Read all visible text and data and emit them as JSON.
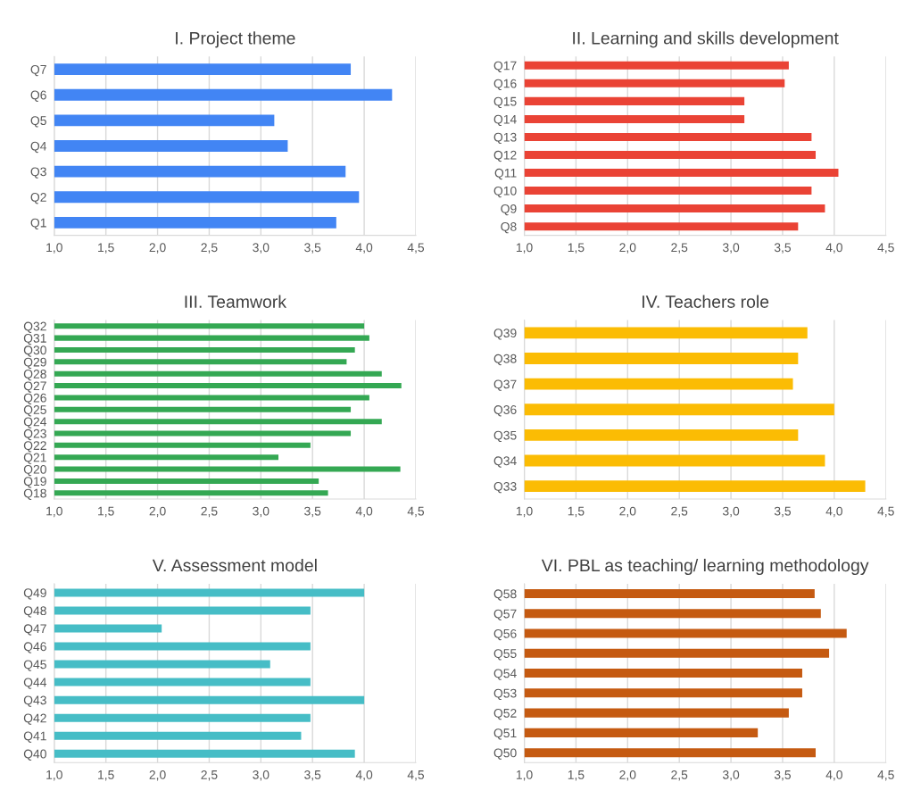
{
  "chart_data": [
    {
      "type": "bar",
      "orientation": "horizontal",
      "title": "I. Project theme",
      "categories": [
        "Q7",
        "Q6",
        "Q5",
        "Q4",
        "Q3",
        "Q2",
        "Q1"
      ],
      "values": [
        3.87,
        4.27,
        3.13,
        3.26,
        3.82,
        3.95,
        3.73
      ],
      "color": "#4285f4",
      "xlim": [
        1,
        4.5
      ],
      "xticks": [
        {
          "value": 1,
          "label": "1,0"
        },
        {
          "value": 1.5,
          "label": "1,5"
        },
        {
          "value": 2,
          "label": "2,0"
        },
        {
          "value": 2.5,
          "label": "2,5"
        },
        {
          "value": 3,
          "label": "3,0"
        },
        {
          "value": 3.5,
          "label": "3,5"
        },
        {
          "value": 4,
          "label": "4,0"
        },
        {
          "value": 4.5,
          "label": "4,5"
        }
      ],
      "grid": "x"
    },
    {
      "type": "bar",
      "orientation": "horizontal",
      "title": "II. Learning and skills development",
      "categories": [
        "Q17",
        "Q16",
        "Q15",
        "Q14",
        "Q13",
        "Q12",
        "Q11",
        "Q10",
        "Q9",
        "Q8"
      ],
      "values": [
        3.56,
        3.52,
        3.13,
        3.13,
        3.78,
        3.82,
        4.04,
        3.78,
        3.91,
        3.65
      ],
      "color": "#ea4335",
      "xlim": [
        1,
        4.5
      ],
      "xticks": [
        {
          "value": 1,
          "label": "1,0"
        },
        {
          "value": 1.5,
          "label": "1,5"
        },
        {
          "value": 2,
          "label": "2,0"
        },
        {
          "value": 2.5,
          "label": "2,5"
        },
        {
          "value": 3,
          "label": "3,0"
        },
        {
          "value": 3.5,
          "label": "3,5"
        },
        {
          "value": 4,
          "label": "4,0"
        },
        {
          "value": 4.5,
          "label": "4,5"
        }
      ],
      "grid": "x"
    },
    {
      "type": "bar",
      "orientation": "horizontal",
      "title": "III. Teamwork",
      "categories": [
        "Q32",
        "Q31",
        "Q30",
        "Q29",
        "Q28",
        "Q27",
        "Q26",
        "Q25",
        "Q24",
        "Q23",
        "Q22",
        "Q21",
        "Q20",
        "Q19",
        "Q18"
      ],
      "values": [
        4.0,
        4.05,
        3.91,
        3.83,
        4.17,
        4.36,
        4.05,
        3.87,
        4.17,
        3.87,
        3.48,
        3.17,
        4.35,
        3.56,
        3.65
      ],
      "color": "#34a853",
      "xlim": [
        1,
        4.5
      ],
      "xticks": [
        {
          "value": 1,
          "label": "1,0"
        },
        {
          "value": 1.5,
          "label": "1,5"
        },
        {
          "value": 2,
          "label": "2,0"
        },
        {
          "value": 2.5,
          "label": "2,5"
        },
        {
          "value": 3,
          "label": "3,0"
        },
        {
          "value": 3.5,
          "label": "3,5"
        },
        {
          "value": 4,
          "label": "4,0"
        },
        {
          "value": 4.5,
          "label": "4,5"
        }
      ],
      "grid": "x"
    },
    {
      "type": "bar",
      "orientation": "horizontal",
      "title": "IV. Teachers role",
      "categories": [
        "Q39",
        "Q38",
        "Q37",
        "Q36",
        "Q35",
        "Q34",
        "Q33"
      ],
      "values": [
        3.74,
        3.65,
        3.6,
        4.0,
        3.65,
        3.91,
        4.3
      ],
      "color": "#fbbc04",
      "xlim": [
        1,
        4.5
      ],
      "xticks": [
        {
          "value": 1,
          "label": "1,0"
        },
        {
          "value": 1.5,
          "label": "1,5"
        },
        {
          "value": 2,
          "label": "2,0"
        },
        {
          "value": 2.5,
          "label": "2,5"
        },
        {
          "value": 3,
          "label": "3,0"
        },
        {
          "value": 3.5,
          "label": "3,5"
        },
        {
          "value": 4,
          "label": "4,0"
        },
        {
          "value": 4.5,
          "label": "4,5"
        }
      ],
      "grid": "x"
    },
    {
      "type": "bar",
      "orientation": "horizontal",
      "title": "V. Assessment model",
      "categories": [
        "Q49",
        "Q48",
        "Q47",
        "Q46",
        "Q45",
        "Q44",
        "Q43",
        "Q42",
        "Q41",
        "Q40"
      ],
      "values": [
        4.0,
        3.48,
        2.04,
        3.48,
        3.09,
        3.48,
        4.0,
        3.48,
        3.39,
        3.91
      ],
      "color": "#46bdc6",
      "xlim": [
        1,
        4.5
      ],
      "xticks": [
        {
          "value": 1,
          "label": "1,0"
        },
        {
          "value": 1.5,
          "label": "1,5"
        },
        {
          "value": 2,
          "label": "2,0"
        },
        {
          "value": 2.5,
          "label": "2,5"
        },
        {
          "value": 3,
          "label": "3,0"
        },
        {
          "value": 3.5,
          "label": "3,5"
        },
        {
          "value": 4,
          "label": "4,0"
        },
        {
          "value": 4.5,
          "label": "4,5"
        }
      ],
      "grid": "x"
    },
    {
      "type": "bar",
      "orientation": "horizontal",
      "title": "VI. PBL as teaching/ learning methodology",
      "categories": [
        "Q58",
        "Q57",
        "Q56",
        "Q55",
        "Q54",
        "Q53",
        "Q52",
        "Q51",
        "Q50"
      ],
      "values": [
        3.81,
        3.87,
        4.12,
        3.95,
        3.69,
        3.69,
        3.56,
        3.26,
        3.82
      ],
      "color": "#c55a11",
      "xlim": [
        1,
        4.5
      ],
      "xticks": [
        {
          "value": 1,
          "label": "1,0"
        },
        {
          "value": 1.5,
          "label": "1,5"
        },
        {
          "value": 2,
          "label": "2,0"
        },
        {
          "value": 2.5,
          "label": "2,5"
        },
        {
          "value": 3,
          "label": "3,0"
        },
        {
          "value": 3.5,
          "label": "3,5"
        },
        {
          "value": 4,
          "label": "4,0"
        },
        {
          "value": 4.5,
          "label": "4,5"
        }
      ],
      "grid": "x"
    }
  ]
}
